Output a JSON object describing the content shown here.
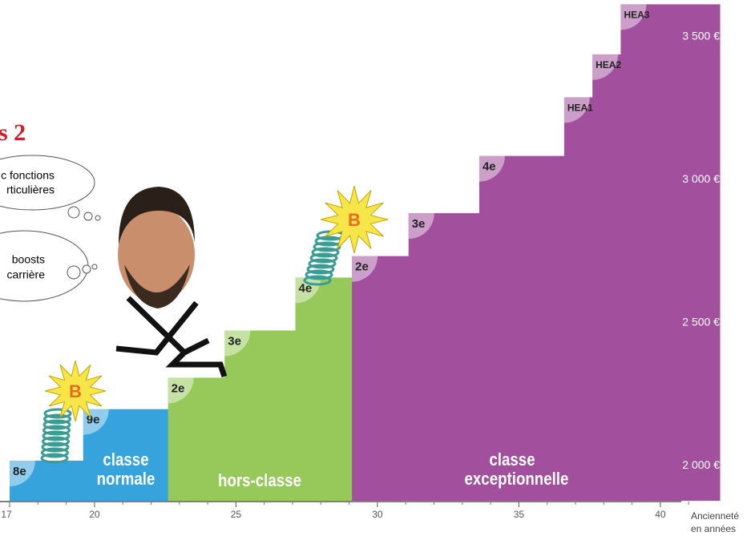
{
  "chart_data": {
    "type": "step",
    "xlim": [
      17,
      42.1
    ],
    "ylim": [
      1900,
      3650
    ],
    "xticks": [
      17,
      20,
      25,
      30,
      35,
      40
    ],
    "yticks": [
      {
        "value": 2000,
        "label": "2 000 €"
      },
      {
        "value": 2500,
        "label": "2 500 €"
      },
      {
        "value": 3000,
        "label": "3 000 €"
      },
      {
        "value": 3500,
        "label": "3 500 €"
      }
    ],
    "x_label": "Ancienneté en années",
    "series": [
      {
        "name": "classe normale",
        "color": "#36a3dc",
        "x": [
          17,
          19.6
        ],
        "x_end": 22.6,
        "labels": [
          "8e",
          "9e"
        ],
        "values": [
          2040,
          2220
        ]
      },
      {
        "name": "hors-classe",
        "color": "#97c95a",
        "x": [
          22.6,
          24.6,
          27.1
        ],
        "x_end": 29.1,
        "labels": [
          "2e",
          "3e",
          "4e"
        ],
        "values": [
          2330,
          2495,
          2680
        ]
      },
      {
        "name": "classe exceptionnelle",
        "color": "#a2509d",
        "x": [
          29.1,
          31.1,
          33.6,
          36.6,
          37.6,
          38.6
        ],
        "x_end": 42.1,
        "labels": [
          "2e",
          "3e",
          "4e",
          "HEA1",
          "HEA2",
          "HEA3"
        ],
        "values": [
          2755,
          2905,
          3105,
          3310,
          3460,
          3635
        ]
      }
    ],
    "annotations": {
      "heading": "s 2",
      "bubble1": [
        "c fonctions",
        "rticulières"
      ],
      "bubble2": [
        "boosts",
        "carrière"
      ],
      "badge": "B"
    }
  }
}
